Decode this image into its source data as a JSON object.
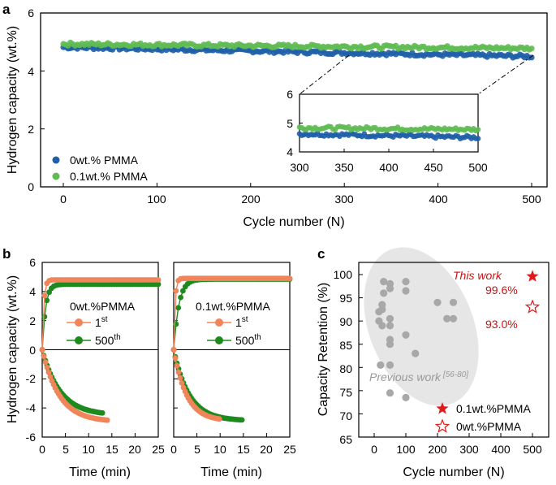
{
  "panel_labels": {
    "a": "a",
    "b": "b",
    "c": "c"
  },
  "colors": {
    "blue": "#1f5fa8",
    "green": "#3fa33a",
    "orange": "#f0855a",
    "dark_green": "#1e8a1e",
    "red": "#e01a1a",
    "gray_point": "#a8a8a8",
    "ellipse": "#e6e6e6",
    "annotation_red": "#cc1111"
  },
  "chart_data": [
    {
      "id": "a",
      "type": "scatter",
      "xlabel": "Cycle number  (N)",
      "ylabel": "Hydrogen capacity (wt.%)",
      "xlim": [
        -20,
        520
      ],
      "ylim": [
        0,
        6
      ],
      "xticks": [
        "0",
        "100",
        "200",
        "300",
        "400",
        "500"
      ],
      "yticks": [
        "0",
        "2",
        "4",
        "6"
      ],
      "series": [
        {
          "name": "0wt.% PMMA",
          "color": "#1f5fa8",
          "x_start": 0,
          "x_end": 500,
          "y_start": 4.82,
          "y_end": 4.5,
          "noise": 0.06
        },
        {
          "name": "0.1wt.% PMMA",
          "color": "#5fbb52",
          "x_start": 0,
          "x_end": 500,
          "y_start": 4.93,
          "y_end": 4.78,
          "noise": 0.06
        }
      ],
      "legend": [
        "0wt.% PMMA",
        "0.1wt.% PMMA"
      ],
      "inset": {
        "xlim": [
          300,
          500
        ],
        "ylim": [
          4,
          6
        ],
        "xticks": [
          "300",
          "350",
          "400",
          "450",
          "500"
        ],
        "yticks": [
          "4",
          "5",
          "6"
        ]
      }
    },
    {
      "id": "b1",
      "type": "line",
      "xlabel": "Time (min)",
      "ylabel": "Hydrogen capacity (wt.%)",
      "xlim": [
        0,
        25
      ],
      "ylim": [
        -6,
        6
      ],
      "xticks": [
        "0",
        "5",
        "10",
        "15",
        "20",
        "25"
      ],
      "yticks": [
        "-6",
        "-4",
        "-2",
        "0",
        "2",
        "4",
        "6"
      ],
      "title": "0wt.%PMMA",
      "series": [
        {
          "name": "1st",
          "legend_base": "1",
          "legend_sup": "st",
          "color": "#f0855a",
          "abs_plateau": 4.8,
          "abs_rate": 3.0,
          "des_plateau": -4.95,
          "des_rate": 0.27,
          "des_end": 14
        },
        {
          "name": "500th",
          "legend_base": "500",
          "legend_sup": "th",
          "color": "#1e8a1e",
          "abs_plateau": 4.5,
          "abs_rate": 1.4,
          "des_plateau": -4.5,
          "des_rate": 0.26,
          "des_end": 13
        }
      ]
    },
    {
      "id": "b2",
      "type": "line",
      "xlabel": "Time (min)",
      "xlim": [
        0,
        25
      ],
      "ylim": [
        -6,
        6
      ],
      "xticks": [
        "0",
        "5",
        "10",
        "15",
        "20",
        "25"
      ],
      "title": "0.1wt.%PMMA",
      "series": [
        {
          "name": "1st",
          "legend_base": "1",
          "legend_sup": "st",
          "color": "#f0855a",
          "abs_plateau": 4.9,
          "abs_rate": 3.5,
          "des_plateau": -4.9,
          "des_rate": 0.36,
          "des_end": 10
        },
        {
          "name": "500th",
          "legend_base": "500",
          "legend_sup": "th",
          "color": "#1e8a1e",
          "abs_plateau": 4.85,
          "abs_rate": 0.9,
          "des_plateau": -4.88,
          "des_rate": 0.3,
          "des_end": 15
        }
      ]
    },
    {
      "id": "c",
      "type": "scatter",
      "xlabel": "Cycle number (N)",
      "ylabel": "Capacity Retention (%)",
      "xlim": [
        -50,
        550
      ],
      "ylim": [
        65,
        100
      ],
      "xticks": [
        "0",
        "100",
        "200",
        "300",
        "400",
        "500"
      ],
      "yticks": [
        "65",
        "70",
        "75",
        "80",
        "85",
        "90",
        "95",
        "100"
      ],
      "previous_work": {
        "label": "Previous work",
        "ref": "[56-80]",
        "points": [
          [
            30,
            98.5
          ],
          [
            50,
            98
          ],
          [
            50,
            97
          ],
          [
            100,
            98.5
          ],
          [
            30,
            96
          ],
          [
            100,
            96.5
          ],
          [
            25,
            93.5
          ],
          [
            25,
            92.5
          ],
          [
            15,
            92
          ],
          [
            15,
            90
          ],
          [
            25,
            89
          ],
          [
            50,
            90.5
          ],
          [
            50,
            89
          ],
          [
            200,
            94
          ],
          [
            250,
            94
          ],
          [
            230,
            90.5
          ],
          [
            250,
            90.5
          ],
          [
            100,
            87
          ],
          [
            50,
            86
          ],
          [
            50,
            85
          ],
          [
            130,
            83
          ],
          [
            20,
            80.5
          ],
          [
            50,
            80.5
          ],
          [
            50,
            74.5
          ],
          [
            100,
            73.5
          ]
        ]
      },
      "this_work": {
        "label": "This work",
        "x": 500,
        "filled": 99.6,
        "hollow": 93.0,
        "filled_text": "99.6%",
        "hollow_text": "93.0%"
      },
      "legend": [
        "0.1wt.%PMMA",
        "0wt.%PMMA"
      ]
    }
  ]
}
